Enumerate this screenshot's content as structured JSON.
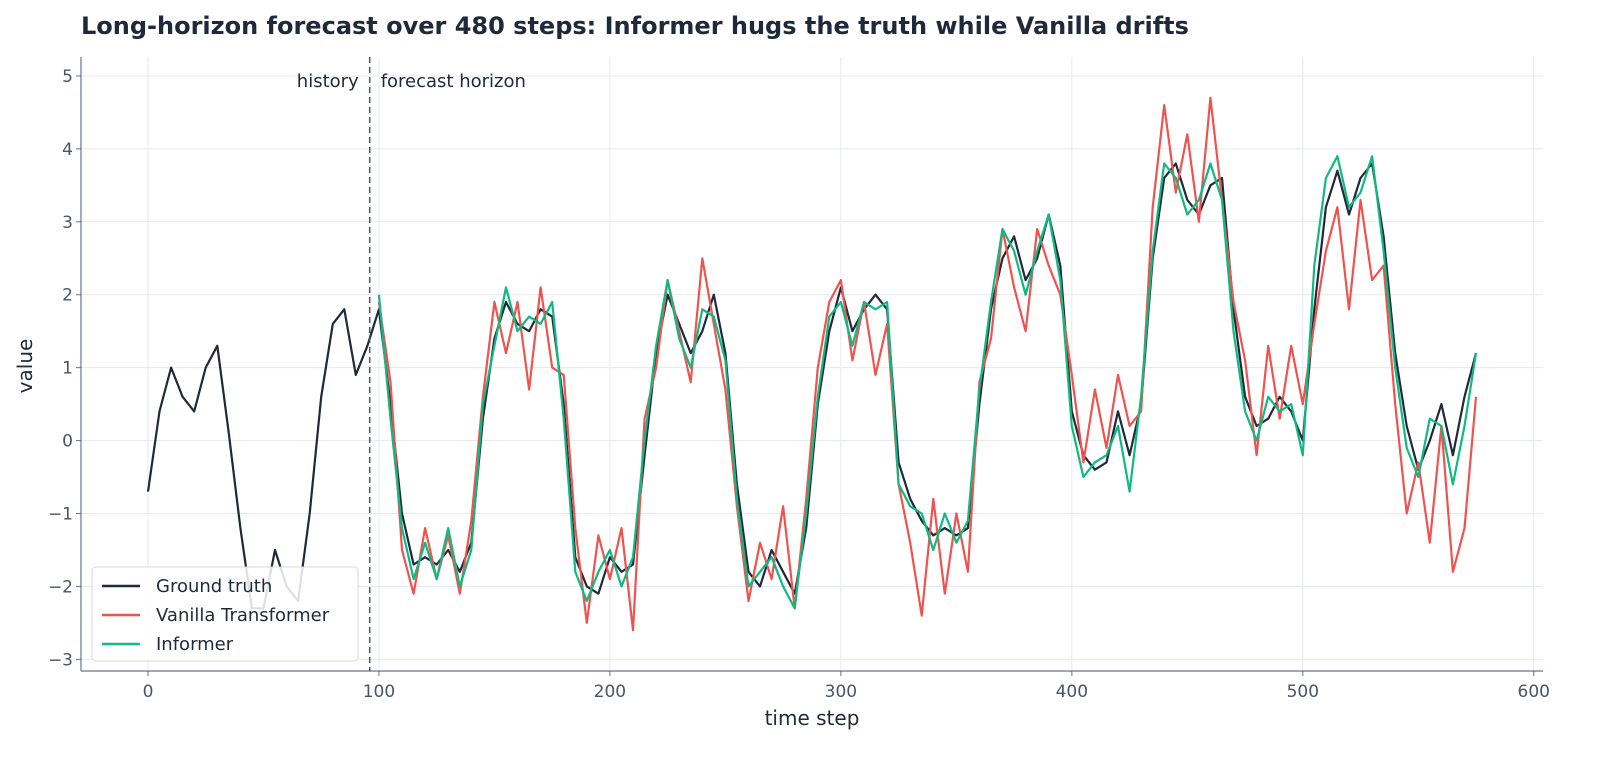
{
  "chart_data": {
    "type": "line",
    "title": "Long-horizon forecast over 480 steps: Informer hugs the truth while Vanilla drifts",
    "xlabel": "time step",
    "ylabel": "value",
    "xlim": [
      -29,
      604
    ],
    "ylim": [
      -3.16,
      5.26
    ],
    "xticks": [
      0,
      100,
      200,
      300,
      400,
      500,
      600
    ],
    "yticks": [
      -3,
      -2,
      -1,
      0,
      1,
      2,
      3,
      4,
      5
    ],
    "grid": true,
    "legend_placement": "lower-left",
    "split": {
      "x": 96,
      "left_label": "history",
      "right_label": "forecast horizon"
    },
    "series": [
      {
        "name": "Ground truth",
        "color": "#1e293b",
        "x_start": 0,
        "x_step": 5,
        "values": [
          -0.7,
          0.4,
          1.0,
          0.6,
          0.4,
          1.0,
          1.3,
          0.1,
          -1.2,
          -2.3,
          -2.3,
          -1.5,
          -2.0,
          -2.2,
          -1.0,
          0.6,
          1.6,
          1.8,
          0.9,
          1.3,
          1.8,
          0.5,
          -1.0,
          -1.7,
          -1.6,
          -1.7,
          -1.5,
          -1.8,
          -1.4,
          0.3,
          1.4,
          1.9,
          1.6,
          1.5,
          1.8,
          1.7,
          0.5,
          -1.6,
          -2.0,
          -2.1,
          -1.6,
          -1.8,
          -1.7,
          -0.2,
          1.2,
          2.0,
          1.6,
          1.2,
          1.5,
          2.0,
          1.2,
          -0.6,
          -1.8,
          -2.0,
          -1.5,
          -1.8,
          -2.1,
          -1.2,
          0.5,
          1.5,
          2.1,
          1.5,
          1.8,
          2.0,
          1.8,
          -0.3,
          -0.8,
          -1.1,
          -1.3,
          -1.2,
          -1.3,
          -1.2,
          0.5,
          1.8,
          2.5,
          2.8,
          2.2,
          2.5,
          3.1,
          2.4,
          0.4,
          -0.2,
          -0.4,
          -0.3,
          0.4,
          -0.2,
          0.5,
          2.5,
          3.6,
          3.8,
          3.3,
          3.1,
          3.5,
          3.6,
          1.8,
          0.6,
          0.2,
          0.3,
          0.6,
          0.4,
          0.0,
          1.8,
          3.2,
          3.7,
          3.1,
          3.6,
          3.8,
          2.8,
          1.2,
          0.2,
          -0.4,
          0.0,
          0.5,
          -0.2,
          0.6,
          1.2
        ]
      },
      {
        "name": "Vanilla Transformer",
        "color": "#ef5350",
        "x_start": 100,
        "x_step": 5,
        "values": [
          1.9,
          0.8,
          -1.5,
          -2.1,
          -1.2,
          -1.9,
          -1.3,
          -2.1,
          -1.1,
          0.6,
          1.9,
          1.2,
          1.9,
          0.7,
          2.1,
          1.0,
          0.9,
          -1.2,
          -2.5,
          -1.3,
          -1.9,
          -1.2,
          -2.6,
          0.3,
          1.0,
          2.2,
          1.5,
          0.8,
          2.5,
          1.6,
          0.7,
          -0.9,
          -2.2,
          -1.4,
          -1.9,
          -0.9,
          -2.3,
          -0.8,
          1.0,
          1.9,
          2.2,
          1.1,
          1.9,
          0.9,
          1.6,
          -0.6,
          -1.4,
          -2.4,
          -0.8,
          -2.1,
          -1.0,
          -1.8,
          0.8,
          1.4,
          2.9,
          2.1,
          1.5,
          2.9,
          2.4,
          2.0,
          0.9,
          -0.3,
          0.7,
          -0.1,
          0.9,
          0.2,
          0.4,
          3.2,
          4.6,
          3.4,
          4.2,
          3.0,
          4.7,
          3.3,
          1.9,
          1.1,
          -0.2,
          1.3,
          0.3,
          1.3,
          0.5,
          1.6,
          2.6,
          3.2,
          1.8,
          3.3,
          2.2,
          2.4,
          0.5,
          -1.0,
          -0.3,
          -1.4,
          0.2,
          -1.8,
          -1.2,
          0.6
        ]
      },
      {
        "name": "Informer",
        "color": "#10b981",
        "x_start": 100,
        "x_step": 5,
        "values": [
          2.0,
          0.3,
          -1.2,
          -1.9,
          -1.4,
          -1.9,
          -1.2,
          -2.0,
          -1.5,
          0.5,
          1.3,
          2.1,
          1.5,
          1.7,
          1.6,
          1.9,
          0.3,
          -1.8,
          -2.2,
          -1.8,
          -1.5,
          -2.0,
          -1.6,
          0.0,
          1.3,
          2.2,
          1.4,
          1.0,
          1.8,
          1.7,
          1.1,
          -0.8,
          -2.0,
          -1.8,
          -1.6,
          -2.0,
          -2.3,
          -1.0,
          0.6,
          1.7,
          1.9,
          1.3,
          1.9,
          1.8,
          1.9,
          -0.6,
          -0.9,
          -1.0,
          -1.5,
          -1.0,
          -1.4,
          -1.1,
          0.7,
          1.9,
          2.9,
          2.6,
          2.0,
          2.6,
          3.1,
          2.2,
          0.2,
          -0.5,
          -0.3,
          -0.2,
          0.2,
          -0.7,
          0.6,
          2.6,
          3.8,
          3.6,
          3.1,
          3.3,
          3.8,
          3.3,
          1.5,
          0.4,
          0.0,
          0.6,
          0.4,
          0.5,
          -0.2,
          2.4,
          3.6,
          3.9,
          3.2,
          3.4,
          3.9,
          2.6,
          1.0,
          -0.1,
          -0.5,
          0.3,
          0.2,
          -0.6,
          0.2,
          1.2
        ]
      }
    ]
  }
}
